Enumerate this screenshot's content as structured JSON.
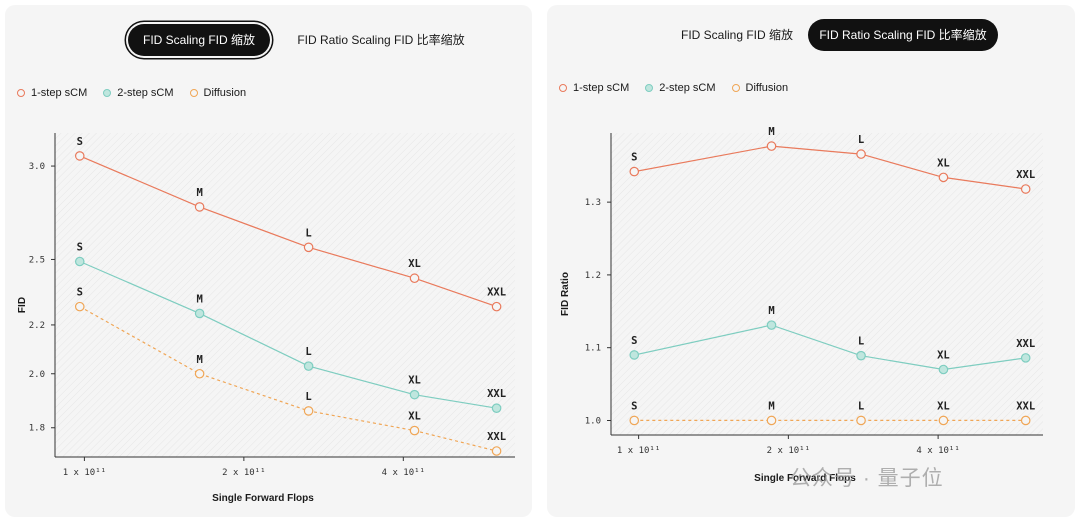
{
  "tabs_left": [
    {
      "label": "FID Scaling FID 缩放",
      "active": true
    },
    {
      "label": "FID Ratio Scaling FID 比率缩放",
      "active": false
    }
  ],
  "tabs_right": [
    {
      "label": "FID Scaling FID 缩放",
      "active": false
    },
    {
      "label": "FID Ratio Scaling FID 比率缩放",
      "active": true
    }
  ],
  "colors": {
    "one_step": "#e97a5c",
    "two_step": "#7ecdc0",
    "two_step_fill": "#bfe6de",
    "diffusion": "#f0a656"
  },
  "watermark": "公众号 · 量子位",
  "chart_data": [
    {
      "type": "line",
      "ylabel": "FID",
      "xlabel": "Single Forward Flops",
      "xscale": "log",
      "yscale": "log",
      "xlim": [
        88000000000,
        650000000000
      ],
      "ylim": [
        1.7,
        3.2
      ],
      "xticks": [
        {
          "value": 100000000000,
          "label": "1 x 10¹¹"
        },
        {
          "value": 200000000000,
          "label": "2 x 10¹¹"
        },
        {
          "value": 400000000000,
          "label": "4 x 10¹¹"
        }
      ],
      "yticks": [
        {
          "value": 1.8,
          "label": "1.8"
        },
        {
          "value": 2.0,
          "label": "2.0"
        },
        {
          "value": 2.2,
          "label": "2.2"
        },
        {
          "value": 2.5,
          "label": "2.5"
        },
        {
          "value": 3.0,
          "label": "3.0"
        }
      ],
      "categories": [
        "S",
        "M",
        "L",
        "XL",
        "XXL"
      ],
      "x": [
        98000000000,
        165000000000,
        265000000000,
        420000000000,
        600000000000
      ],
      "series": [
        {
          "name": "1-step sCM",
          "values": [
            3.06,
            2.77,
            2.56,
            2.41,
            2.28
          ]
        },
        {
          "name": "2-step sCM",
          "values": [
            2.49,
            2.25,
            2.03,
            1.92,
            1.87
          ]
        },
        {
          "name": "Diffusion",
          "values": [
            2.28,
            2.0,
            1.86,
            1.79,
            1.72
          ]
        }
      ]
    },
    {
      "type": "line",
      "ylabel": "FID Ratio",
      "xlabel": "Single Forward Flops",
      "xscale": "log",
      "yscale": "linear",
      "xlim": [
        88000000000,
        650000000000
      ],
      "ylim": [
        0.98,
        1.395
      ],
      "xticks": [
        {
          "value": 100000000000,
          "label": "1 x 10¹¹"
        },
        {
          "value": 200000000000,
          "label": "2 x 10¹¹"
        },
        {
          "value": 400000000000,
          "label": "4 x 10¹¹"
        }
      ],
      "yticks": [
        {
          "value": 1.0,
          "label": "1.0"
        },
        {
          "value": 1.1,
          "label": "1.1"
        },
        {
          "value": 1.2,
          "label": "1.2"
        },
        {
          "value": 1.3,
          "label": "1.3"
        }
      ],
      "categories": [
        "S",
        "M",
        "L",
        "XL",
        "XXL"
      ],
      "x": [
        98000000000,
        185000000000,
        280000000000,
        410000000000,
        600000000000
      ],
      "series": [
        {
          "name": "1-step sCM",
          "values": [
            1.342,
            1.377,
            1.366,
            1.334,
            1.318
          ]
        },
        {
          "name": "2-step sCM",
          "values": [
            1.09,
            1.131,
            1.089,
            1.07,
            1.086
          ]
        },
        {
          "name": "Diffusion",
          "values": [
            1.0,
            1.0,
            1.0,
            1.0,
            1.0
          ]
        }
      ]
    }
  ]
}
